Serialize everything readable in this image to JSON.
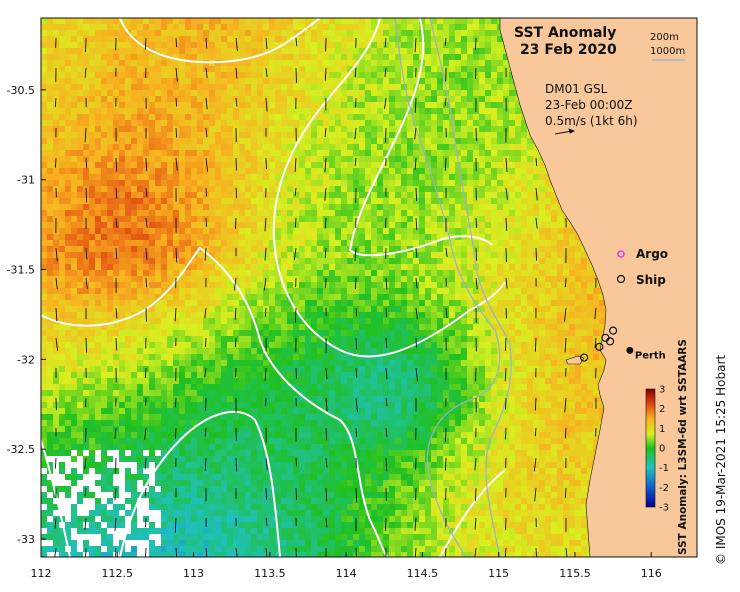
{
  "title": "SST Anomaly",
  "date": "23 Feb 2020",
  "depth_legend": [
    "200m",
    "1000m"
  ],
  "current_info": [
    "DM01 GSL",
    "23-Feb 00:00Z",
    "0.5m/s (1kt 6h)"
  ],
  "markers": {
    "argo_label": "Argo",
    "ship_label": "Ship",
    "city": "Perth",
    "city_lonlat": [
      115.86,
      -31.95
    ],
    "ship_positions": [
      [
        115.56,
        -31.99
      ],
      [
        115.66,
        -31.93
      ],
      [
        115.7,
        -31.88
      ],
      [
        115.73,
        -31.9
      ],
      [
        115.75,
        -31.84
      ]
    ]
  },
  "colors": {
    "land": "#f9c89a",
    "contour": "#ffffff",
    "bathymetry": "#9bb0c8",
    "argo": "#e040e0"
  },
  "colorbar": {
    "label": "SST Anomaly: L3SM-6d wrt SSTAARS",
    "min": -3,
    "max": 3,
    "ticks": [
      "3",
      "2",
      "1",
      "0",
      "-1",
      "-2",
      "-3"
    ]
  },
  "axes": {
    "lon_min": 112,
    "lon_max": 116.3,
    "lat_min": -33.1,
    "lat_max": -30.1,
    "x_ticks": [
      "112",
      "112.5",
      "113",
      "113.5",
      "114",
      "114.5",
      "115",
      "115.5",
      "116"
    ],
    "y_ticks": [
      "-30.5",
      "-31",
      "-31.5",
      "-32",
      "-32.5",
      "-33"
    ]
  },
  "copyright": "© IMOS 19-Mar-2021 15:25 Hobart"
}
